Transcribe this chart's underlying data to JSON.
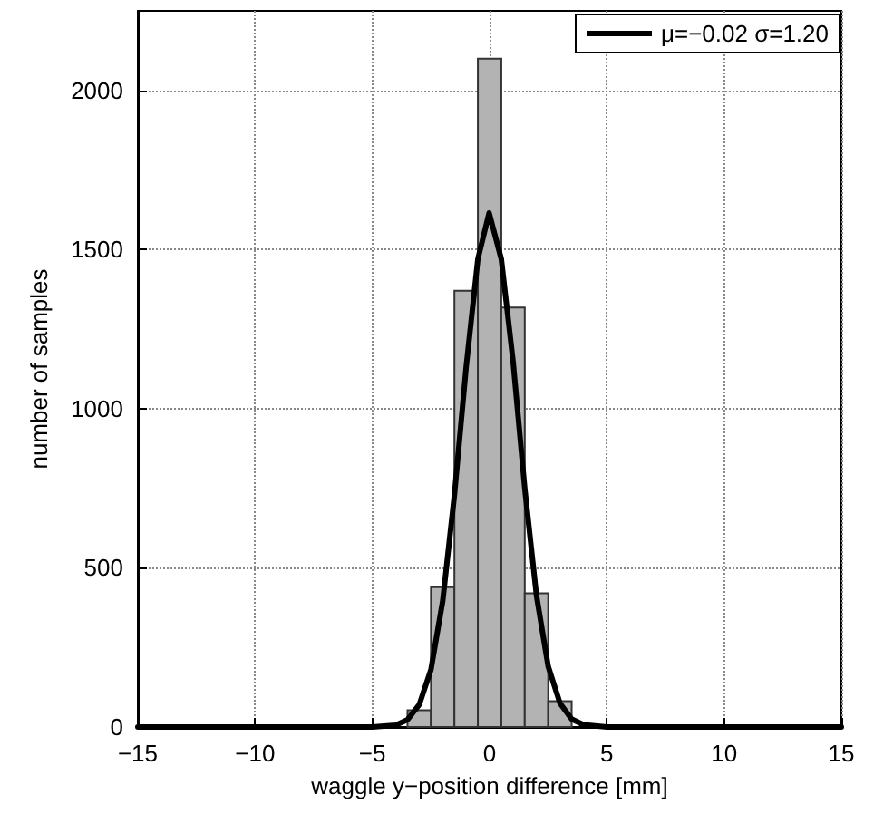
{
  "chart_data": {
    "type": "histogram",
    "xlabel": "waggle y−position difference [mm]",
    "ylabel": "number of samples",
    "bins": [
      -8.5,
      -7.5,
      -6.5,
      -5.5,
      -4.5,
      -3.5,
      -2.5,
      -1.5,
      -0.5,
      0.5,
      1.5,
      2.5,
      3.5,
      4.5,
      5.5,
      6.5,
      7.5,
      8.5
    ],
    "values": [
      2,
      3,
      5,
      null,
      null,
      53,
      439,
      1371,
      2100,
      1318,
      420,
      81,
      null,
      5,
      3,
      2,
      1
    ],
    "color": "#b3b3b3",
    "series": [
      {
        "type": "line",
        "name": "μ=−0.02 σ=1.20",
        "color": "#000000",
        "x": [
          -15,
          -6,
          -5,
          -4,
          -3.5,
          -3,
          -2.5,
          -2,
          -1.5,
          -1,
          -0.5,
          -0.02,
          0.5,
          1,
          1.5,
          2,
          2.5,
          3,
          3.5,
          4,
          5,
          6,
          15
        ],
        "values": [
          0,
          0,
          0,
          6,
          23,
          70,
          180,
          395,
          728,
          1130,
          1470,
          1615,
          1470,
          1150,
          750,
          413,
          190,
          75,
          25,
          7,
          0,
          0,
          0
        ]
      }
    ],
    "xlim": [
      -15,
      15
    ],
    "ylim": [
      0,
      2250
    ],
    "xticks": [
      {
        "value": -15,
        "label": "−15"
      },
      {
        "value": -10,
        "label": "−10"
      },
      {
        "value": -5,
        "label": "−5"
      },
      0,
      5,
      10,
      15
    ],
    "yticks": [
      0,
      500,
      1000,
      1500,
      2000
    ],
    "grid": true,
    "legend": "top right",
    "line_style": "solid",
    "marker": "none"
  }
}
